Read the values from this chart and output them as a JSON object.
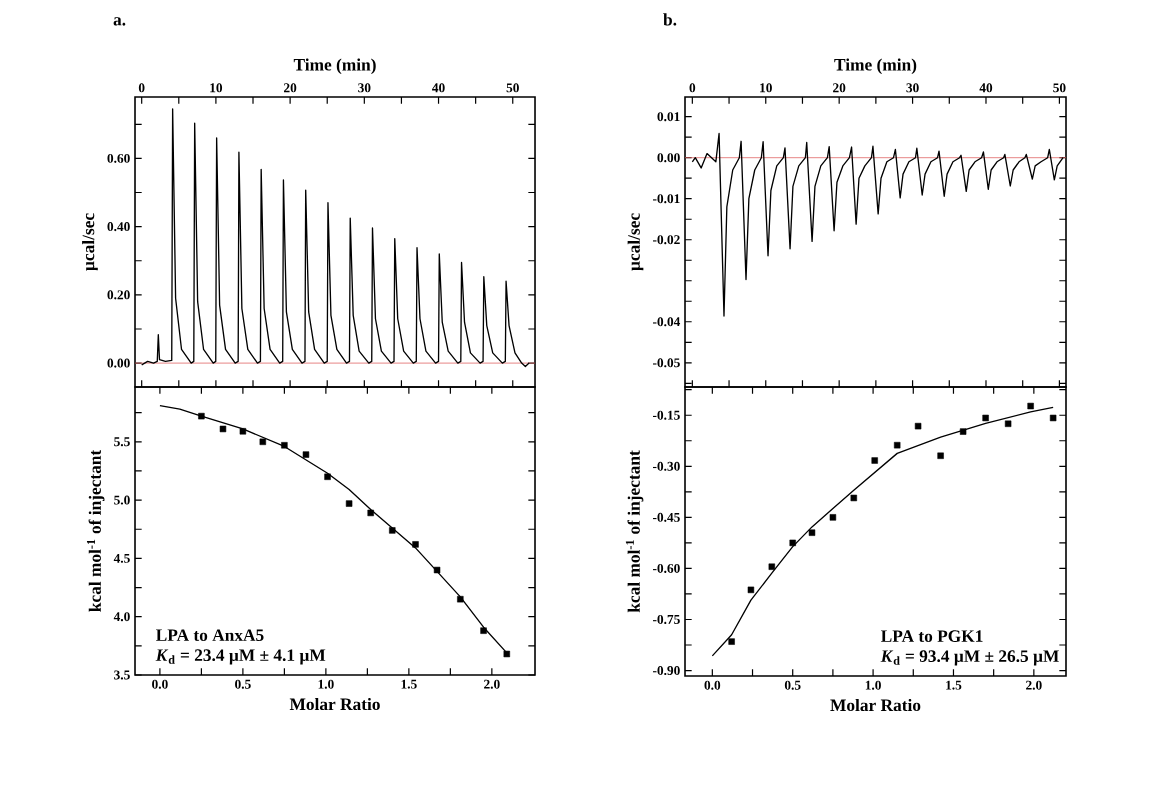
{
  "chart_data": [
    {
      "type": "line",
      "title": "a.",
      "xlabel": "Time (min)",
      "ylabel": "µcal/sec",
      "xlim": [
        -0.9,
        53
      ],
      "ylim": [
        -0.07,
        0.78
      ],
      "xticks": [
        0,
        {
          "value": 5,
          "label": null
        },
        10,
        {
          "value": 15,
          "label": null
        },
        20,
        {
          "value": 25,
          "label": null
        },
        30,
        {
          "value": 35,
          "label": null
        },
        40,
        {
          "value": 45,
          "label": null
        },
        50
      ],
      "yticks": [
        {
          "value": 0,
          "label": "0.00"
        },
        {
          "value": 0.1,
          "label": null
        },
        {
          "value": 0.2,
          "label": "0.20"
        },
        {
          "value": 0.3,
          "label": null
        },
        {
          "value": 0.4,
          "label": "0.40"
        },
        {
          "value": 0.5,
          "label": null
        },
        {
          "value": 0.6,
          "label": "0.60"
        },
        {
          "value": 0.7,
          "label": null
        }
      ],
      "ref_lines": [
        {
          "axis": "y",
          "value": 0,
          "color": "#e06666"
        }
      ],
      "series": [
        {
          "color": "#000000",
          "x": [
            0,
            0.8,
            1.6,
            2.1,
            2.24,
            2.4,
            3.2,
            4.05,
            4.17,
            4.57,
            5.37,
            6.67,
            7.02,
            7.14,
            7.54,
            8.34,
            9.64,
            9.98,
            10.1,
            10.5,
            11.3,
            12.6,
            13.0,
            13.1,
            13.5,
            14.3,
            15.6,
            16.0,
            16.1,
            16.5,
            17.3,
            18.6,
            19.0,
            19.1,
            19.5,
            20.3,
            21.6,
            22.0,
            22.1,
            22.5,
            23.3,
            24.6,
            25.0,
            25.1,
            25.5,
            26.3,
            27.6,
            28.0,
            28.1,
            28.5,
            29.3,
            30.6,
            31.0,
            31.1,
            31.5,
            32.3,
            33.6,
            34.0,
            34.1,
            34.5,
            35.3,
            36.6,
            37.0,
            37.1,
            37.5,
            38.3,
            39.6,
            40.0,
            40.1,
            40.5,
            41.3,
            42.6,
            43.0,
            43.1,
            43.5,
            44.3,
            45.6,
            46.0,
            46.1,
            46.5,
            47.3,
            48.6,
            49.0,
            49.1,
            49.5,
            50.3,
            51.2,
            51.7,
            52.2
          ],
          "values": [
            -0.005,
            0.005,
            0.0,
            0.005,
            0.083,
            0.01,
            0.005,
            0.008,
            0.745,
            0.19,
            0.04,
            0.0,
            0.005,
            0.703,
            0.18,
            0.04,
            0.0,
            0.005,
            0.66,
            0.17,
            0.04,
            0.0,
            0.005,
            0.618,
            0.16,
            0.04,
            0.0,
            0.005,
            0.568,
            0.16,
            0.04,
            0.0,
            0.005,
            0.537,
            0.15,
            0.04,
            0.0,
            0.005,
            0.507,
            0.15,
            0.04,
            0.0,
            0.005,
            0.47,
            0.14,
            0.04,
            0.0,
            0.005,
            0.425,
            0.14,
            0.035,
            0.0,
            0.005,
            0.396,
            0.13,
            0.035,
            0.0,
            0.005,
            0.365,
            0.13,
            0.035,
            0.0,
            0.005,
            0.338,
            0.13,
            0.035,
            0.0,
            0.005,
            0.32,
            0.12,
            0.035,
            0.0,
            0.005,
            0.295,
            0.12,
            0.03,
            0.0,
            0.005,
            0.253,
            0.11,
            0.03,
            0.0,
            0.005,
            0.24,
            0.11,
            0.03,
            0.0,
            -0.01,
            0.0
          ]
        }
      ]
    },
    {
      "type": "scatter",
      "xlabel": "Molar Ratio",
      "ylabel": "kcal mol$^{-1}$ of injectant",
      "xlim": [
        -0.15,
        2.26
      ],
      "ylim": [
        3.5,
        5.97
      ],
      "xticks": [
        {
          "value": 0,
          "label": "0.0"
        },
        {
          "value": 0.25,
          "label": null
        },
        {
          "value": 0.5,
          "label": "0.5"
        },
        {
          "value": 0.75,
          "label": null
        },
        {
          "value": 1,
          "label": "1.0"
        },
        {
          "value": 1.25,
          "label": null
        },
        {
          "value": 1.5,
          "label": "1.5"
        },
        {
          "value": 1.75,
          "label": null
        },
        {
          "value": 2,
          "label": "2.0"
        }
      ],
      "yticks": [
        {
          "value": 3.5,
          "label": "3.5"
        },
        {
          "value": 3.75,
          "label": null
        },
        {
          "value": 4,
          "label": "4.0"
        },
        {
          "value": 4.25,
          "label": null
        },
        {
          "value": 4.5,
          "label": "4.5"
        },
        {
          "value": 4.75,
          "label": null
        },
        {
          "value": 5,
          "label": "5.0"
        },
        {
          "value": 5.25,
          "label": null
        },
        {
          "value": 5.5,
          "label": "5.5"
        },
        {
          "value": 5.75,
          "label": null
        }
      ],
      "annotations": [
        "LPA to AnxA5",
        "*K*$_{d}$ = 23.4 µM ± 4.1 µM"
      ],
      "series": [
        {
          "type": "scatter",
          "marker": "square",
          "color": "#000000",
          "x": [
            0.25,
            0.38,
            0.5,
            0.62,
            0.75,
            0.88,
            1.01,
            1.14,
            1.27,
            1.4,
            1.54,
            1.67,
            1.81,
            1.95,
            2.09
          ],
          "values": [
            5.72,
            5.61,
            5.59,
            5.5,
            5.47,
            5.39,
            5.2,
            4.97,
            4.89,
            4.74,
            4.62,
            4.4,
            4.15,
            3.88,
            3.68
          ]
        },
        {
          "type": "line",
          "color": "#000000",
          "x": [
            0.0,
            0.12,
            0.25,
            0.5,
            0.75,
            1.01,
            1.14,
            1.27,
            1.54,
            1.81,
            1.95,
            2.09
          ],
          "values": [
            5.81,
            5.78,
            5.72,
            5.61,
            5.46,
            5.23,
            5.09,
            4.92,
            4.59,
            4.17,
            3.91,
            3.69
          ]
        }
      ]
    },
    {
      "type": "line",
      "title": "b.",
      "xlabel": "Time (min)",
      "ylabel": "µcal/sec",
      "xlim": [
        -1.0,
        50.9
      ],
      "ylim": [
        -0.0559,
        0.0148
      ],
      "xticks": [
        0,
        {
          "value": 5,
          "label": null
        },
        10,
        {
          "value": 15,
          "label": null
        },
        20,
        {
          "value": 25,
          "label": null
        },
        30,
        {
          "value": 35,
          "label": null
        },
        40,
        {
          "value": 45,
          "label": null
        },
        50
      ],
      "yticks": [
        {
          "value": 0.01,
          "label": "0.01"
        },
        {
          "value": 0.005,
          "label": null
        },
        {
          "value": 0,
          "label": "0.00"
        },
        {
          "value": -0.005,
          "label": null
        },
        {
          "value": -0.01,
          "label": "-0.01"
        },
        {
          "value": -0.015,
          "label": null
        },
        {
          "value": -0.02,
          "label": "-0.02"
        },
        {
          "value": -0.025,
          "label": null
        },
        {
          "value": -0.03,
          "label": null
        },
        {
          "value": -0.035,
          "label": null
        },
        {
          "value": -0.04,
          "label": "-0.04"
        },
        {
          "value": -0.045,
          "label": null
        },
        {
          "value": -0.05,
          "label": "-0.05"
        },
        {
          "value": -0.055,
          "label": null
        }
      ],
      "ref_lines": [
        {
          "axis": "y",
          "value": 0,
          "color": "#e06666"
        }
      ],
      "series": [
        {
          "color": "#000000",
          "x": [
            0,
            0.4,
            1.2,
            2.0,
            3.2,
            3.64,
            4.31,
            4.7,
            5.5,
            6.4,
            6.64,
            7.31,
            7.7,
            8.5,
            9.4,
            9.64,
            10.31,
            10.7,
            11.5,
            12.4,
            12.62,
            13.31,
            13.7,
            14.5,
            15.4,
            15.58,
            16.31,
            16.7,
            17.5,
            18.4,
            18.64,
            19.31,
            19.7,
            20.5,
            21.4,
            21.69,
            22.31,
            22.7,
            23.5,
            24.4,
            24.6,
            25.31,
            25.7,
            26.5,
            27.4,
            27.66,
            28.31,
            28.7,
            29.5,
            30.4,
            30.58,
            31.31,
            31.7,
            32.5,
            33.4,
            33.6,
            34.31,
            34.7,
            35.5,
            36.4,
            36.6,
            37.31,
            37.7,
            38.5,
            39.4,
            39.65,
            40.31,
            40.7,
            41.5,
            42.4,
            42.57,
            43.31,
            43.7,
            44.5,
            45.3,
            45.49,
            46.31,
            46.7,
            47.5,
            48.4,
            48.63,
            49.31,
            49.7,
            50.5
          ],
          "values": [
            -0.001,
            0.0,
            -0.0025,
            0.001,
            -0.001,
            0.0059,
            -0.0386,
            -0.012,
            -0.003,
            0.0,
            0.004,
            -0.0297,
            -0.01,
            -0.003,
            0.0,
            0.0039,
            -0.0239,
            -0.008,
            -0.002,
            0.0,
            0.0024,
            -0.0222,
            -0.007,
            -0.002,
            0.0,
            0.0037,
            -0.0204,
            -0.007,
            -0.002,
            0.0,
            0.0027,
            -0.0178,
            -0.006,
            -0.002,
            0.0,
            0.0026,
            -0.0162,
            -0.005,
            -0.002,
            0.0,
            0.0028,
            -0.0137,
            -0.005,
            -0.001,
            0.0,
            0.002,
            -0.0098,
            -0.004,
            -0.001,
            0.0,
            0.0023,
            -0.0091,
            -0.004,
            -0.001,
            0.0,
            0.0016,
            -0.0094,
            -0.004,
            -0.001,
            0.0,
            0.0006,
            -0.0082,
            -0.003,
            -0.001,
            0.0,
            0.0014,
            -0.0077,
            -0.003,
            -0.001,
            0.0,
            0.0008,
            -0.0069,
            -0.003,
            -0.001,
            0.0,
            0.0008,
            -0.0052,
            -0.002,
            -0.001,
            0.0,
            0.002,
            -0.0054,
            -0.002,
            0.0
          ]
        }
      ]
    },
    {
      "type": "scatter",
      "xlabel": "Molar Ratio",
      "ylabel": "kcal mol$^{-1}$ of injectant",
      "xlim": [
        -0.17,
        2.2
      ],
      "ylim": [
        -0.916,
        -0.067
      ],
      "xticks": [
        {
          "value": 0,
          "label": "0.0"
        },
        {
          "value": 0.25,
          "label": null
        },
        0.5,
        {
          "value": 0.75,
          "label": null
        },
        {
          "value": 1,
          "label": "1.0"
        },
        {
          "value": 1.25,
          "label": null
        },
        1.5,
        {
          "value": 1.75,
          "label": null
        },
        {
          "value": 2,
          "label": "2.0"
        }
      ],
      "yticks": [
        {
          "value": -0.075,
          "label": null
        },
        -0.15,
        {
          "value": -0.225,
          "label": null
        },
        {
          "value": -0.3,
          "label": "-0.30"
        },
        {
          "value": -0.375,
          "label": null
        },
        -0.45,
        {
          "value": -0.525,
          "label": null
        },
        {
          "value": -0.6,
          "label": "-0.60"
        },
        {
          "value": -0.675,
          "label": null
        },
        -0.75,
        {
          "value": -0.825,
          "label": null
        },
        {
          "value": -0.9,
          "label": "-0.90"
        }
      ],
      "annotations": [
        "LPA to PGK1",
        "*K*$_{d}$ = 93.4 µM ± 26.5 µM"
      ],
      "series": [
        {
          "type": "scatter",
          "marker": "square",
          "color": "#000000",
          "x": [
            0.12,
            0.24,
            0.37,
            0.5,
            0.62,
            0.75,
            0.88,
            1.01,
            1.15,
            1.28,
            1.42,
            1.56,
            1.7,
            1.84,
            1.98,
            2.12
          ],
          "values": [
            -0.815,
            -0.663,
            -0.595,
            -0.525,
            -0.495,
            -0.45,
            -0.393,
            -0.283,
            -0.238,
            -0.182,
            -0.269,
            -0.198,
            -0.158,
            -0.175,
            -0.123,
            -0.158
          ]
        },
        {
          "type": "line",
          "color": "#000000",
          "x": [
            0.0,
            0.12,
            0.24,
            0.37,
            0.5,
            0.62,
            0.88,
            1.15,
            1.42,
            1.7,
            1.98,
            2.12
          ],
          "values": [
            -0.857,
            -0.795,
            -0.693,
            -0.614,
            -0.536,
            -0.478,
            -0.37,
            -0.262,
            -0.214,
            -0.174,
            -0.14,
            -0.127
          ]
        }
      ]
    }
  ]
}
